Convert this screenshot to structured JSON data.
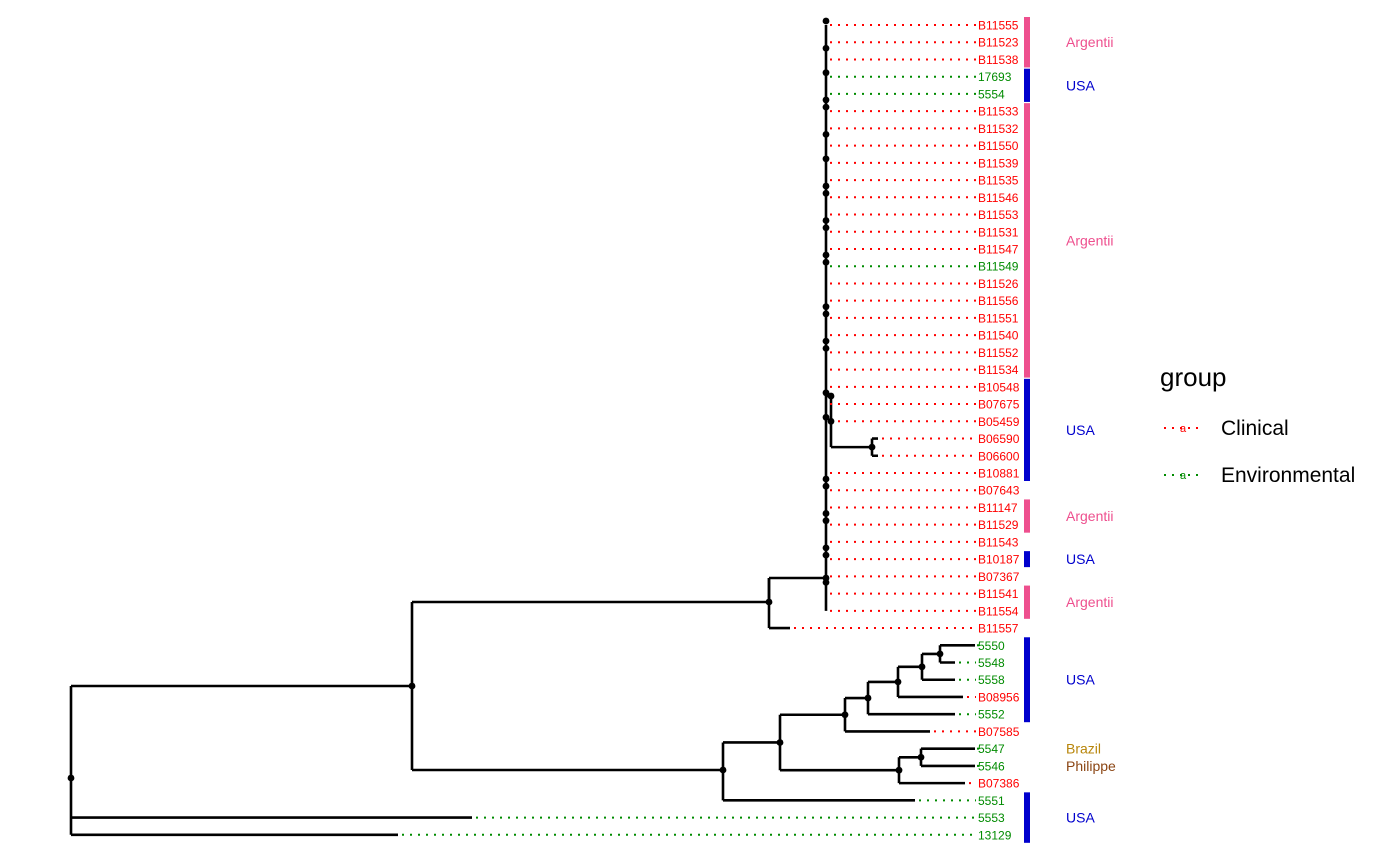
{
  "colors": {
    "clinical": "#ff0000",
    "environmental": "#008b00",
    "branch": "#000000",
    "argentina": "#ee4f8e",
    "usa": "#0000cd",
    "brazil": "#b8860b",
    "philippines": "#8b4513"
  },
  "legend": {
    "title": "group",
    "items": [
      {
        "label": "Clinical",
        "color_key": "clinical",
        "glyph": "a"
      },
      {
        "label": "Environmental",
        "color_key": "environmental",
        "glyph": "a"
      }
    ]
  },
  "tips": [
    {
      "label": "B11555",
      "group": "clinical"
    },
    {
      "label": "B11523",
      "group": "clinical"
    },
    {
      "label": "B11538",
      "group": "clinical"
    },
    {
      "label": "17693",
      "group": "environmental"
    },
    {
      "label": "5554",
      "group": "environmental"
    },
    {
      "label": "B11533",
      "group": "clinical"
    },
    {
      "label": "B11532",
      "group": "clinical"
    },
    {
      "label": "B11550",
      "group": "clinical"
    },
    {
      "label": "B11539",
      "group": "clinical"
    },
    {
      "label": "B11535",
      "group": "clinical"
    },
    {
      "label": "B11546",
      "group": "clinical"
    },
    {
      "label": "B11553",
      "group": "clinical"
    },
    {
      "label": "B11531",
      "group": "clinical"
    },
    {
      "label": "B11547",
      "group": "clinical"
    },
    {
      "label": "B11549",
      "group": "environmental"
    },
    {
      "label": "B11526",
      "group": "clinical"
    },
    {
      "label": "B11556",
      "group": "clinical"
    },
    {
      "label": "B11551",
      "group": "clinical"
    },
    {
      "label": "B11540",
      "group": "clinical"
    },
    {
      "label": "B11552",
      "group": "clinical"
    },
    {
      "label": "B11534",
      "group": "clinical"
    },
    {
      "label": "B10548",
      "group": "clinical"
    },
    {
      "label": "B07675",
      "group": "clinical"
    },
    {
      "label": "B05459",
      "group": "clinical"
    },
    {
      "label": "B06590",
      "group": "clinical"
    },
    {
      "label": "B06600",
      "group": "clinical"
    },
    {
      "label": "B10881",
      "group": "clinical"
    },
    {
      "label": "B07643",
      "group": "clinical"
    },
    {
      "label": "B11147",
      "group": "clinical"
    },
    {
      "label": "B11529",
      "group": "clinical"
    },
    {
      "label": "B11543",
      "group": "clinical"
    },
    {
      "label": "B10187",
      "group": "clinical"
    },
    {
      "label": "B07367",
      "group": "clinical"
    },
    {
      "label": "B11541",
      "group": "clinical"
    },
    {
      "label": "B11554",
      "group": "clinical"
    },
    {
      "label": "B11557",
      "group": "clinical"
    },
    {
      "label": "5550",
      "group": "environmental"
    },
    {
      "label": "5548",
      "group": "environmental"
    },
    {
      "label": "5558",
      "group": "environmental"
    },
    {
      "label": "B08956",
      "group": "clinical"
    },
    {
      "label": "5552",
      "group": "environmental"
    },
    {
      "label": "B07585",
      "group": "clinical"
    },
    {
      "label": "5547",
      "group": "environmental"
    },
    {
      "label": "5546",
      "group": "environmental"
    },
    {
      "label": "B07386",
      "group": "clinical"
    },
    {
      "label": "5551",
      "group": "environmental"
    },
    {
      "label": "5553",
      "group": "environmental"
    },
    {
      "label": "13129",
      "group": "environmental"
    }
  ],
  "country_groups": [
    {
      "label": "Argentina",
      "color_key": "argentina",
      "from": 0,
      "to": 2,
      "visible_text": "Argentii"
    },
    {
      "label": "USA",
      "color_key": "usa",
      "from": 3,
      "to": 4,
      "visible_text": "USA"
    },
    {
      "label": "Argentina",
      "color_key": "argentina",
      "from": 5,
      "to": 20,
      "visible_text": "Argentii"
    },
    {
      "label": "USA",
      "color_key": "usa",
      "from": 21,
      "to": 26,
      "visible_text": "USA"
    },
    {
      "label": "Argentina",
      "color_key": "argentina",
      "from": 28,
      "to": 29,
      "visible_text": "Argentii"
    },
    {
      "label": "USA",
      "color_key": "usa",
      "from": 31,
      "to": 31,
      "visible_text": "USA"
    },
    {
      "label": "Argentina",
      "color_key": "argentina",
      "from": 33,
      "to": 34,
      "visible_text": "Argentii"
    },
    {
      "label": "USA",
      "color_key": "usa",
      "from": 36,
      "to": 40,
      "visible_text": "USA"
    },
    {
      "label": "Brazil",
      "color_key": "brazil",
      "from": 42,
      "to": 42,
      "visible_text": "Brazil"
    },
    {
      "label": "Philippines",
      "color_key": "philippines",
      "from": 43,
      "to": 43,
      "visible_text": "Philippe"
    },
    {
      "label": "USA",
      "color_key": "usa",
      "from": 45,
      "to": 47,
      "visible_text": "USA"
    }
  ]
}
